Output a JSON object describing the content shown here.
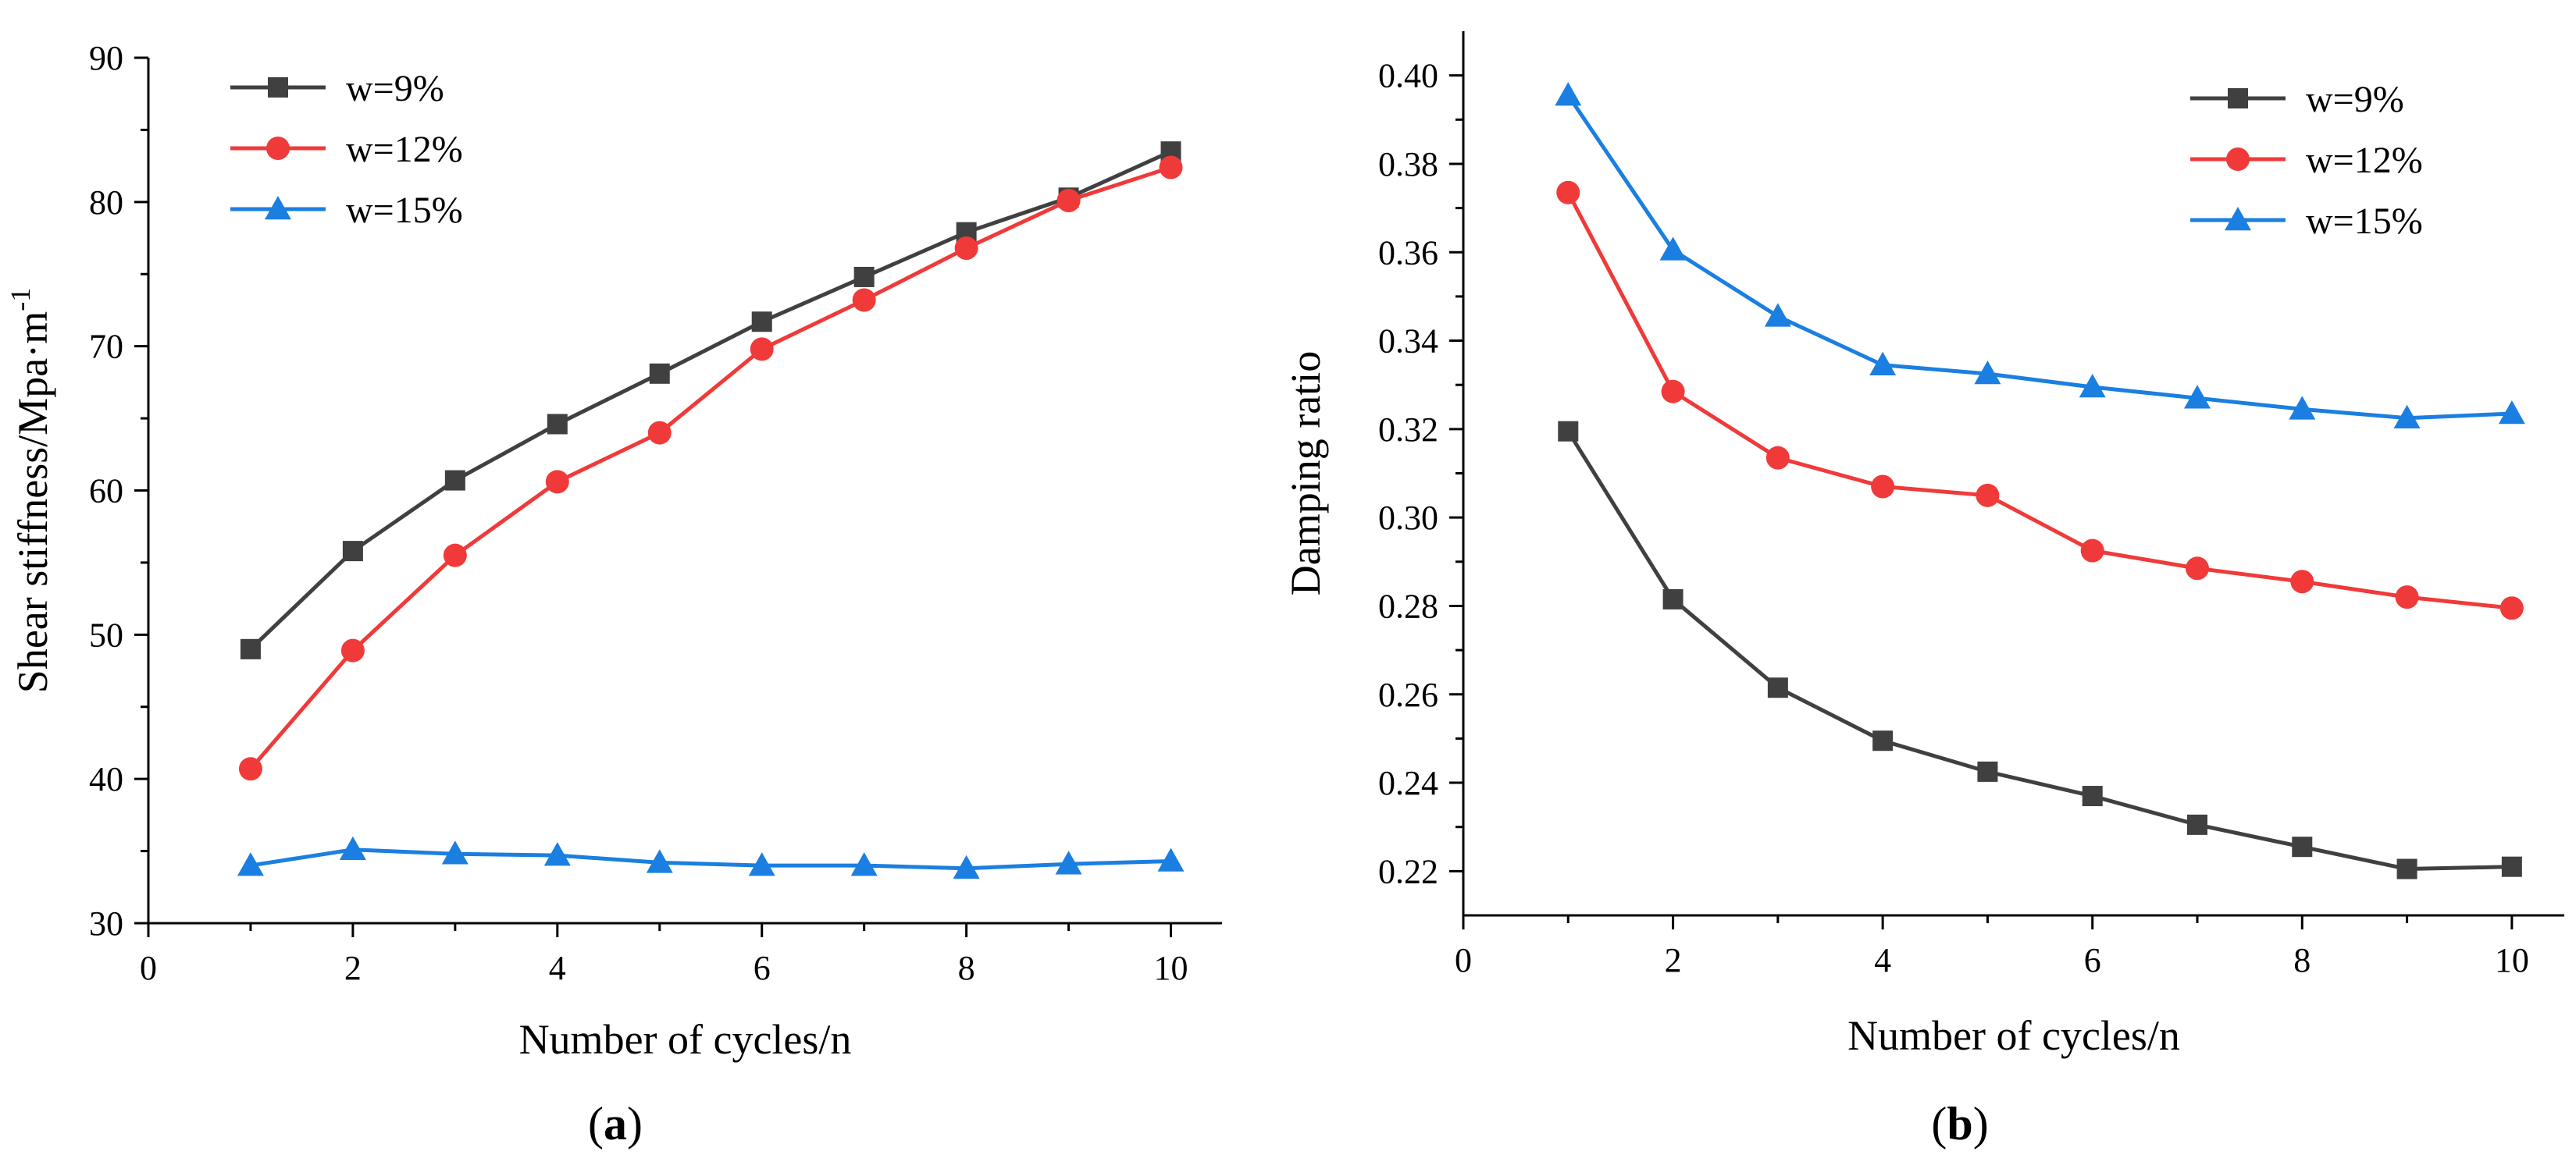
{
  "chart_data": [
    {
      "id": "a",
      "type": "line",
      "panel_label": "(a)",
      "panel_letter": "a",
      "xlabel": "Number of cycles/n",
      "ylabel_main": "Shear stiffness/Mpa·m",
      "ylabel_sup": "-1",
      "xlim": [
        0,
        10.5
      ],
      "ylim": [
        30,
        90
      ],
      "x_ticks": [
        0,
        2,
        4,
        6,
        8,
        10
      ],
      "x_tick_labels": [
        "0",
        "2",
        "4",
        "6",
        "8",
        "10"
      ],
      "y_ticks": [
        30,
        40,
        50,
        60,
        70,
        80,
        90
      ],
      "y_tick_labels": [
        "30",
        "40",
        "50",
        "60",
        "70",
        "80",
        "90"
      ],
      "x": [
        1,
        2,
        3,
        4,
        5,
        6,
        7,
        8,
        9,
        10
      ],
      "legend_position": "top-left",
      "grid": false,
      "series": [
        {
          "name": "w=9%",
          "color": "#404040",
          "marker": "square",
          "values": [
            49.0,
            55.8,
            60.7,
            64.6,
            68.1,
            71.7,
            74.8,
            77.9,
            80.3,
            83.5
          ]
        },
        {
          "name": "w=12%",
          "color": "#f03a3a",
          "marker": "circle",
          "values": [
            40.7,
            48.9,
            55.5,
            60.6,
            64.0,
            69.8,
            73.2,
            76.8,
            80.1,
            82.4
          ]
        },
        {
          "name": "w=15%",
          "color": "#1a7fe0",
          "marker": "triangle",
          "values": [
            34.0,
            35.1,
            34.8,
            34.7,
            34.2,
            34.0,
            34.0,
            33.8,
            34.1,
            34.3
          ]
        }
      ]
    },
    {
      "id": "b",
      "type": "line",
      "panel_label": "(b)",
      "panel_letter": "b",
      "xlabel": "Number of cycles/n",
      "ylabel_main": "Damping ratio",
      "ylabel_sup": "",
      "xlim": [
        0,
        10.5
      ],
      "ylim": [
        0.21,
        0.41
      ],
      "x_ticks": [
        0,
        2,
        4,
        6,
        8,
        10
      ],
      "x_tick_labels": [
        "0",
        "2",
        "4",
        "6",
        "8",
        "10"
      ],
      "y_ticks": [
        0.22,
        0.24,
        0.26,
        0.28,
        0.3,
        0.32,
        0.34,
        0.36,
        0.38,
        0.4
      ],
      "y_tick_labels": [
        "0.22",
        "0.24",
        "0.26",
        "0.28",
        "0.30",
        "0.32",
        "0.34",
        "0.36",
        "0.38",
        "0.40"
      ],
      "x": [
        1,
        2,
        3,
        4,
        5,
        6,
        7,
        8,
        9,
        10
      ],
      "legend_position": "top-right",
      "grid": false,
      "series": [
        {
          "name": "w=9%",
          "color": "#404040",
          "marker": "square",
          "values": [
            0.3195,
            0.2815,
            0.2615,
            0.2495,
            0.2425,
            0.237,
            0.2305,
            0.2255,
            0.2205,
            0.221
          ]
        },
        {
          "name": "w=12%",
          "color": "#f03a3a",
          "marker": "circle",
          "values": [
            0.3735,
            0.3285,
            0.3135,
            0.307,
            0.305,
            0.2925,
            0.2885,
            0.2855,
            0.282,
            0.2795
          ]
        },
        {
          "name": "w=15%",
          "color": "#1a7fe0",
          "marker": "triangle",
          "values": [
            0.3955,
            0.3605,
            0.3455,
            0.3345,
            0.3325,
            0.3295,
            0.327,
            0.3245,
            0.3225,
            0.3235
          ]
        }
      ]
    }
  ]
}
